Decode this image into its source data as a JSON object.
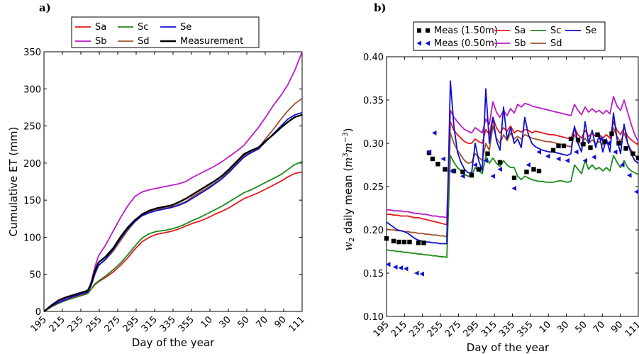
{
  "chart_data": [
    {
      "type": "line",
      "panel_label": "a)",
      "xlabel": "Day of the year",
      "ylabel": "Cumulative ET (mm)",
      "ylim": [
        0,
        350
      ],
      "x_tick_labels": [
        "195",
        "215",
        "235",
        "255",
        "275",
        "295",
        "315",
        "335",
        "355",
        "10",
        "30",
        "50",
        "70",
        "90",
        "111"
      ],
      "y_ticks": [
        0,
        50,
        100,
        150,
        200,
        250,
        300,
        350
      ],
      "legend_position": "top",
      "x": [
        0,
        4,
        8,
        12,
        16,
        20,
        24,
        26,
        28,
        30,
        34,
        38,
        42,
        46,
        50,
        54,
        58,
        62,
        66,
        70,
        74,
        78,
        82,
        86,
        90,
        94,
        98,
        102,
        106,
        110,
        114,
        118,
        122,
        126,
        130,
        134,
        138,
        142
      ],
      "series": [
        {
          "name": "Sa",
          "color": "#e41a1c",
          "values": [
            0,
            6,
            11,
            15,
            18,
            21,
            24,
            30,
            36,
            40,
            46,
            53,
            62,
            72,
            84,
            94,
            100,
            104,
            106,
            108,
            111,
            115,
            119,
            122,
            126,
            131,
            135,
            140,
            146,
            152,
            156,
            160,
            165,
            170,
            175,
            181,
            186,
            188
          ]
        },
        {
          "name": "Sb",
          "color": "#b81cc4",
          "values": [
            0,
            8,
            13,
            18,
            21,
            24,
            27,
            40,
            60,
            75,
            90,
            108,
            126,
            142,
            155,
            161,
            164,
            166,
            168,
            170,
            172,
            175,
            181,
            186,
            191,
            196,
            202,
            209,
            216,
            224,
            236,
            248,
            262,
            277,
            290,
            305,
            325,
            350
          ]
        },
        {
          "name": "Sc",
          "color": "#1a8a1a",
          "values": [
            0,
            6,
            11,
            15,
            18,
            21,
            24,
            30,
            37,
            41,
            48,
            56,
            65,
            76,
            88,
            99,
            105,
            108,
            109,
            111,
            114,
            118,
            123,
            127,
            132,
            137,
            142,
            148,
            154,
            160,
            164,
            169,
            174,
            179,
            184,
            191,
            198,
            202
          ]
        },
        {
          "name": "Sd",
          "color": "#a0522d",
          "values": [
            0,
            6,
            12,
            16,
            19,
            22,
            25,
            35,
            50,
            62,
            70,
            81,
            95,
            109,
            121,
            130,
            134,
            137,
            139,
            141,
            144,
            148,
            155,
            161,
            167,
            173,
            180,
            190,
            200,
            210,
            215,
            220,
            233,
            245,
            258,
            270,
            280,
            287
          ]
        },
        {
          "name": "Se",
          "color": "#1010d0",
          "values": [
            0,
            7,
            12,
            16,
            20,
            23,
            26,
            35,
            51,
            62,
            71,
            83,
            98,
            111,
            121,
            129,
            133,
            136,
            138,
            140,
            143,
            147,
            153,
            159,
            165,
            172,
            179,
            188,
            198,
            208,
            214,
            219,
            229,
            239,
            249,
            259,
            265,
            268
          ]
        },
        {
          "name": "Measurement",
          "color": "#000000",
          "values": [
            0,
            8,
            15,
            19,
            22,
            25,
            28,
            37,
            55,
            66,
            74,
            85,
            100,
            113,
            123,
            131,
            136,
            139,
            141,
            143,
            147,
            152,
            158,
            164,
            170,
            176,
            183,
            192,
            202,
            212,
            217,
            221,
            230,
            238,
            247,
            255,
            262,
            265
          ]
        }
      ]
    },
    {
      "type": "line",
      "panel_label": "b)",
      "xlabel": "Day of the year",
      "ylabel": "w",
      "ylabel_sub": "2",
      "ylabel_rest": " daily mean (",
      "ylabel_unit_m": "m",
      "ylabel_unit_exp1": "3",
      "ylabel_unit_exp2": "−3",
      "ylabel_close": ")",
      "ylim": [
        0.1,
        0.4
      ],
      "x_tick_labels": [
        "195",
        "215",
        "235",
        "255",
        "275",
        "295",
        "315",
        "335",
        "355",
        "10",
        "30",
        "50",
        "70",
        "90",
        "111"
      ],
      "y_tick_labels": [
        "0.10",
        "0.15",
        "0.20",
        "0.25",
        "0.30",
        "0.35",
        "0.40"
      ],
      "legend_position": "top",
      "x": [
        0,
        2,
        4,
        6,
        8,
        10,
        12,
        14,
        16,
        18,
        20,
        22,
        24,
        26,
        28,
        30,
        32,
        34,
        36,
        38,
        40,
        42,
        44,
        46,
        48,
        50,
        52,
        54,
        56,
        58,
        60,
        62,
        64,
        66,
        68,
        70,
        72,
        74,
        76,
        78,
        80,
        82,
        84,
        86,
        88,
        90,
        92,
        94,
        96,
        98,
        100,
        102,
        104,
        106,
        108,
        110,
        112,
        114,
        116,
        118,
        120,
        122,
        124,
        126,
        128,
        130,
        132,
        134,
        136,
        138,
        140,
        142
      ],
      "series": [
        {
          "name": "Sa",
          "color": "#e41a1c",
          "values": [
            0.218,
            0.218,
            0.217,
            0.217,
            0.216,
            0.216,
            0.216,
            0.215,
            0.214,
            0.214,
            0.213,
            0.212,
            0.211,
            0.21,
            0.209,
            0.208,
            0.207,
            0.206,
            0.325,
            0.315,
            0.31,
            0.306,
            0.302,
            0.3,
            0.3,
            0.305,
            0.302,
            0.3,
            0.316,
            0.31,
            0.33,
            0.318,
            0.312,
            0.318,
            0.314,
            0.32,
            0.312,
            0.315,
            0.313,
            0.316,
            0.315,
            0.312,
            0.314,
            0.313,
            0.312,
            0.311,
            0.31,
            0.31,
            0.309,
            0.308,
            0.307,
            0.306,
            0.305,
            0.318,
            0.31,
            0.306,
            0.315,
            0.308,
            0.312,
            0.308,
            0.31,
            0.306,
            0.31,
            0.306,
            0.325,
            0.315,
            0.31,
            0.318,
            0.308,
            0.304,
            0.301,
            0.298
          ]
        },
        {
          "name": "Sb",
          "color": "#b81cc4",
          "values": [
            0.223,
            0.223,
            0.222,
            0.222,
            0.222,
            0.221,
            0.221,
            0.22,
            0.219,
            0.219,
            0.218,
            0.218,
            0.217,
            0.216,
            0.216,
            0.215,
            0.215,
            0.214,
            0.338,
            0.33,
            0.325,
            0.32,
            0.316,
            0.314,
            0.312,
            0.318,
            0.315,
            0.312,
            0.328,
            0.322,
            0.348,
            0.336,
            0.33,
            0.338,
            0.332,
            0.34,
            0.335,
            0.345,
            0.342,
            0.346,
            0.345,
            0.343,
            0.342,
            0.341,
            0.34,
            0.339,
            0.338,
            0.337,
            0.336,
            0.335,
            0.334,
            0.333,
            0.332,
            0.345,
            0.338,
            0.333,
            0.342,
            0.336,
            0.34,
            0.336,
            0.338,
            0.334,
            0.338,
            0.334,
            0.354,
            0.343,
            0.338,
            0.35,
            0.336,
            0.322,
            0.31,
            0.302
          ]
        },
        {
          "name": "Sc",
          "color": "#1a8a1a",
          "values": [
            0.177,
            0.176,
            0.176,
            0.175,
            0.175,
            0.174,
            0.174,
            0.173,
            0.173,
            0.172,
            0.172,
            0.171,
            0.171,
            0.17,
            0.17,
            0.169,
            0.169,
            0.168,
            0.286,
            0.278,
            0.272,
            0.268,
            0.264,
            0.262,
            0.263,
            0.272,
            0.268,
            0.265,
            0.285,
            0.277,
            0.283,
            0.277,
            0.273,
            0.28,
            0.275,
            0.272,
            0.272,
            0.262,
            0.258,
            0.262,
            0.26,
            0.258,
            0.257,
            0.256,
            0.256,
            0.255,
            0.255,
            0.255,
            0.256,
            0.257,
            0.256,
            0.255,
            0.256,
            0.275,
            0.27,
            0.265,
            0.28,
            0.27,
            0.275,
            0.27,
            0.272,
            0.268,
            0.272,
            0.268,
            0.286,
            0.278,
            0.272,
            0.28,
            0.272,
            0.268,
            0.266,
            0.264
          ]
        },
        {
          "name": "Sd",
          "color": "#a0522d",
          "values": [
            0.201,
            0.2,
            0.2,
            0.199,
            0.199,
            0.198,
            0.198,
            0.197,
            0.197,
            0.196,
            0.196,
            0.195,
            0.195,
            0.194,
            0.194,
            0.193,
            0.193,
            0.192,
            0.312,
            0.3,
            0.292,
            0.286,
            0.28,
            0.277,
            0.278,
            0.288,
            0.284,
            0.28,
            0.3,
            0.292,
            0.32,
            0.306,
            0.3,
            0.31,
            0.303,
            0.312,
            0.305,
            0.308,
            0.305,
            0.31,
            0.308,
            0.306,
            0.305,
            0.304,
            0.303,
            0.302,
            0.302,
            0.301,
            0.3,
            0.299,
            0.298,
            0.297,
            0.296,
            0.31,
            0.303,
            0.298,
            0.306,
            0.3,
            0.304,
            0.3,
            0.302,
            0.298,
            0.302,
            0.298,
            0.318,
            0.308,
            0.302,
            0.312,
            0.3,
            0.292,
            0.286,
            0.282
          ]
        },
        {
          "name": "Se",
          "color": "#1010d0",
          "values": [
            0.209,
            0.206,
            0.203,
            0.2,
            0.199,
            0.198,
            0.196,
            0.193,
            0.19,
            0.188,
            0.187,
            0.186,
            0.186,
            0.185,
            0.185,
            0.184,
            0.184,
            0.184,
            0.372,
            0.32,
            0.29,
            0.278,
            0.27,
            0.266,
            0.266,
            0.3,
            0.28,
            0.268,
            0.363,
            0.3,
            0.33,
            0.303,
            0.292,
            0.342,
            0.305,
            0.318,
            0.3,
            0.305,
            0.295,
            0.33,
            0.31,
            0.3,
            0.296,
            0.294,
            0.292,
            0.291,
            0.29,
            0.29,
            0.289,
            0.288,
            0.287,
            0.286,
            0.288,
            0.32,
            0.3,
            0.29,
            0.325,
            0.3,
            0.315,
            0.295,
            0.31,
            0.29,
            0.305,
            0.29,
            0.335,
            0.305,
            0.288,
            0.322,
            0.3,
            0.288,
            0.28,
            0.277
          ]
        }
      ],
      "points": [
        {
          "name": "Meas (1.50m)",
          "marker": "square",
          "color": "#000000",
          "x": [
            0,
            4,
            7,
            10,
            13,
            18,
            21,
            24,
            26,
            29,
            33,
            38,
            43,
            48,
            52,
            57,
            64,
            72,
            79,
            83,
            86,
            94,
            97,
            100,
            104,
            108,
            111,
            115,
            119,
            123,
            127,
            131,
            135,
            139,
            142
          ],
          "values": [
            0.19,
            0.187,
            0.186,
            0.186,
            0.186,
            0.185,
            0.185,
            0.289,
            0.282,
            0.276,
            0.27,
            0.268,
            0.267,
            0.263,
            0.27,
            0.288,
            0.278,
            0.26,
            0.267,
            0.27,
            0.268,
            0.292,
            0.297,
            0.297,
            0.305,
            0.304,
            0.299,
            0.295,
            0.31,
            0.302,
            0.311,
            0.3,
            0.294,
            0.288,
            0.283
          ]
        },
        {
          "name": "Meas (0.50m)",
          "marker": "triangle-left",
          "color": "#1010d0",
          "x": [
            1,
            5,
            8,
            11,
            17,
            20,
            24,
            27,
            32,
            37,
            43,
            50,
            56,
            60,
            64,
            72,
            80,
            86,
            91,
            97,
            102,
            107,
            112,
            117,
            121,
            125,
            129,
            133,
            137,
            141
          ],
          "values": [
            0.16,
            0.157,
            0.156,
            0.155,
            0.15,
            0.149,
            0.29,
            0.312,
            0.282,
            0.268,
            0.262,
            0.275,
            0.28,
            0.262,
            0.27,
            0.248,
            0.275,
            0.29,
            0.285,
            0.282,
            0.28,
            0.29,
            0.28,
            0.284,
            0.305,
            0.3,
            0.29,
            0.275,
            0.263,
            0.244
          ]
        }
      ]
    }
  ]
}
